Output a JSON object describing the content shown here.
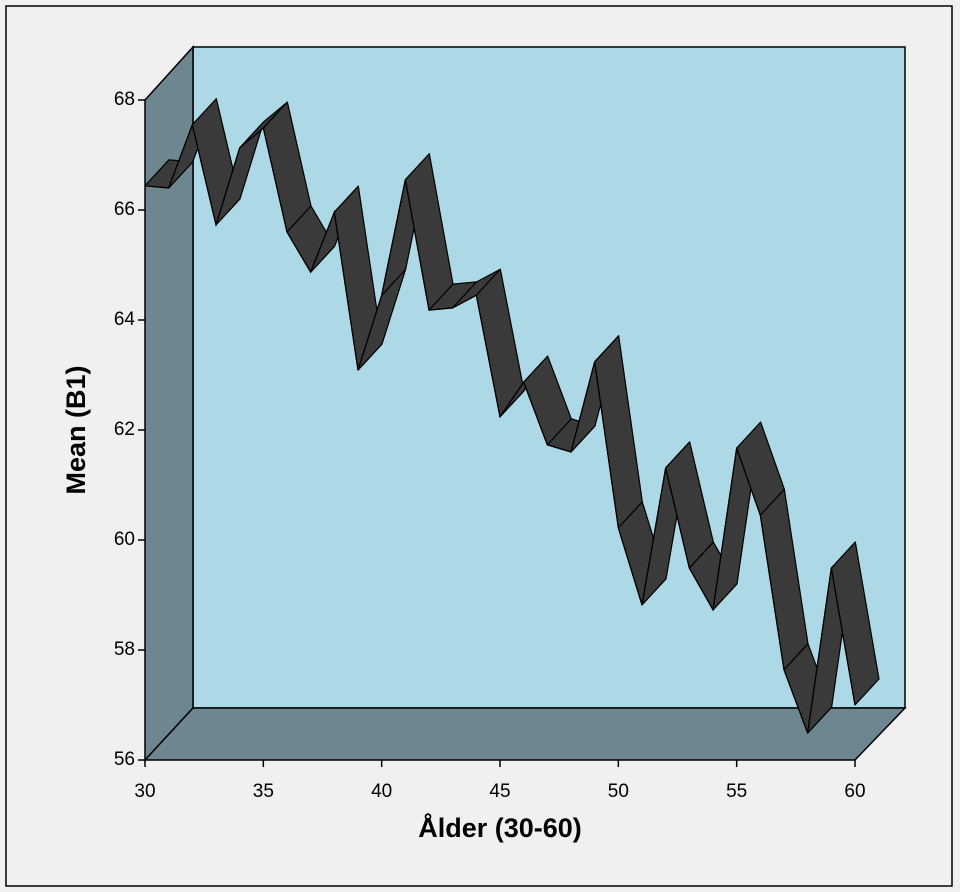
{
  "chart_data": {
    "type": "line",
    "three_d": true,
    "x_label": "Ålder (30-60)",
    "y_label": "Mean (B1)",
    "x": [
      30,
      31,
      32,
      33,
      34,
      35,
      36,
      37,
      38,
      39,
      40,
      41,
      42,
      43,
      44,
      45,
      46,
      47,
      48,
      49,
      50,
      51,
      52,
      53,
      54,
      55,
      56,
      57,
      58,
      59,
      60
    ],
    "values": [
      66.44,
      66.4,
      67.55,
      65.73,
      67.13,
      67.49,
      65.6,
      64.87,
      65.96,
      63.09,
      64.45,
      66.55,
      64.18,
      64.22,
      64.45,
      62.24,
      62.87,
      61.73,
      61.6,
      63.24,
      60.22,
      58.82,
      61.31,
      59.49,
      58.73,
      61.67,
      60.45,
      57.64,
      56.49,
      59.49,
      57.0
    ],
    "color": "#3a3a3a",
    "xlim": [
      30,
      60
    ],
    "xticks": [
      30,
      35,
      40,
      45,
      50,
      55,
      60
    ],
    "ylim": [
      56,
      68
    ],
    "yticks": [
      56,
      58,
      60,
      62,
      64,
      66,
      68
    ]
  }
}
